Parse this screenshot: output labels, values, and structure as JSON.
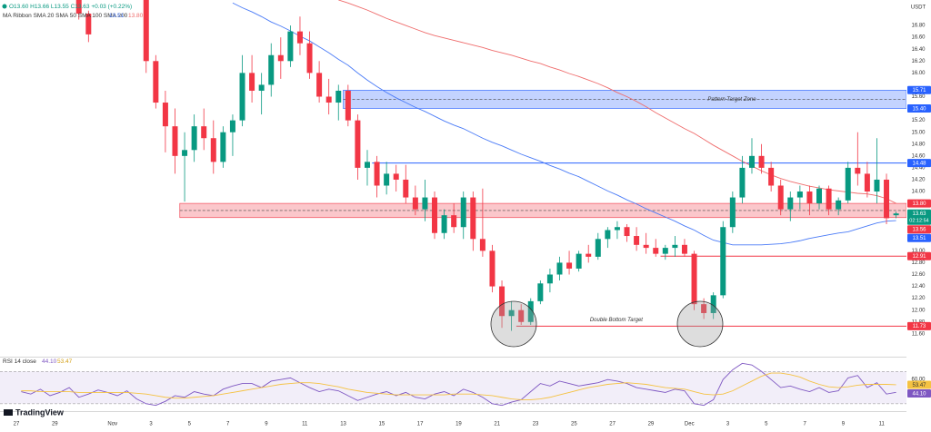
{
  "chart_data": [
    {
      "type": "candlestick",
      "ohlc_legend": "O13.60 H13.66 L13.55 C13.63 +0.03 (+0.22%)",
      "indicator": "MA Ribbon SMA 20 SMA 50 SMA 100 SMA 200",
      "currency": "USDT",
      "up_color": "#089981",
      "down_color": "#f23645",
      "categories": [
        "27",
        null,
        null,
        null,
        "29",
        null,
        null,
        null,
        null,
        null,
        "Nov",
        null,
        null,
        null,
        "3",
        null,
        null,
        null,
        "5",
        null,
        null,
        null,
        "7",
        null,
        null,
        null,
        "9",
        null,
        null,
        null,
        "11",
        null,
        null,
        null,
        "13",
        null,
        null,
        null,
        "15",
        null,
        null,
        null,
        "17",
        null,
        null,
        null,
        "19",
        null,
        null,
        null,
        "21",
        null,
        null,
        null,
        "23",
        null,
        null,
        null,
        "25",
        null,
        null,
        null,
        "27",
        null,
        null,
        null,
        "29",
        null,
        null,
        null,
        "Dec",
        null,
        null,
        null,
        "3",
        null,
        null,
        null,
        "5",
        null,
        null,
        null,
        "7",
        null,
        null,
        null,
        "9",
        null,
        null,
        null,
        "11",
        null
      ],
      "open": [
        null,
        null,
        null,
        null,
        null,
        null,
        17.3,
        17.0,
        17.4,
        17.6,
        17.5,
        17.6,
        17.7,
        17.4,
        16.2,
        15.5,
        15.1,
        14.6,
        14.7,
        15.1,
        14.9,
        14.5,
        15.0,
        15.2,
        16.0,
        15.7,
        15.8,
        16.3,
        16.2,
        16.7,
        16.5,
        16.0,
        15.6,
        15.5,
        15.7,
        15.2,
        14.4,
        14.5,
        14.1,
        14.3,
        14.2,
        13.9,
        13.7,
        13.9,
        13.3,
        13.6,
        13.4,
        13.9,
        13.2,
        13.0,
        12.4,
        11.9,
        12.0,
        11.8,
        12.15,
        12.45,
        12.6,
        12.8,
        12.7,
        12.95,
        12.9,
        13.2,
        13.35,
        13.4,
        13.25,
        13.1,
        13.05,
        12.95,
        13.05,
        13.1,
        12.95,
        12.1,
        11.95,
        12.25,
        13.4,
        13.9,
        14.4,
        14.6,
        14.4,
        14.1,
        13.7,
        13.9,
        14.0,
        13.8,
        14.05,
        13.7,
        13.85,
        14.4,
        14.3,
        14.0,
        14.2,
        13.6
      ],
      "high": [
        null,
        null,
        null,
        null,
        null,
        null,
        17.4,
        17.05,
        17.7,
        17.8,
        17.7,
        17.8,
        17.8,
        17.5,
        16.3,
        15.7,
        15.4,
        15.0,
        15.3,
        15.4,
        15.2,
        15.1,
        15.3,
        16.3,
        16.3,
        16.0,
        16.5,
        16.6,
        16.8,
        16.95,
        16.7,
        16.2,
        15.9,
        15.8,
        15.8,
        15.3,
        14.7,
        14.6,
        14.5,
        14.45,
        14.45,
        14.1,
        14.2,
        14.0,
        13.7,
        13.8,
        14.0,
        14.0,
        14.05,
        13.1,
        12.5,
        12.15,
        12.1,
        12.2,
        12.5,
        12.7,
        12.9,
        13.0,
        13.0,
        13.1,
        13.3,
        13.4,
        13.5,
        13.45,
        13.4,
        13.3,
        13.2,
        13.1,
        13.25,
        13.2,
        13.0,
        12.2,
        12.3,
        13.5,
        14.0,
        14.6,
        14.9,
        14.8,
        14.5,
        14.2,
        14.0,
        14.1,
        14.1,
        14.1,
        14.1,
        13.9,
        14.5,
        15.0,
        14.5,
        14.9,
        14.3,
        13.66
      ],
      "low": [
        null,
        null,
        null,
        null,
        null,
        null,
        16.9,
        16.52,
        17.3,
        17.4,
        17.3,
        17.4,
        17.3,
        16.0,
        15.4,
        14.66,
        14.3,
        13.83,
        14.5,
        14.7,
        14.3,
        14.4,
        14.6,
        15.1,
        15.5,
        15.3,
        15.6,
        15.9,
        16.1,
        16.3,
        15.9,
        15.5,
        15.3,
        15.2,
        15.1,
        14.2,
        14.1,
        13.9,
        13.95,
        14.0,
        13.8,
        13.6,
        13.5,
        13.2,
        13.2,
        13.3,
        13.2,
        13.0,
        12.9,
        12.3,
        11.7,
        11.65,
        11.75,
        11.75,
        12.1,
        12.3,
        12.5,
        12.6,
        12.65,
        12.8,
        12.85,
        13.05,
        13.2,
        13.15,
        13.0,
        12.95,
        12.9,
        12.85,
        12.9,
        12.9,
        12.0,
        11.85,
        11.85,
        12.2,
        13.3,
        13.8,
        14.3,
        14.3,
        14.0,
        13.6,
        13.5,
        13.7,
        13.6,
        13.7,
        13.6,
        13.6,
        13.8,
        14.1,
        13.9,
        13.8,
        13.45,
        13.55
      ],
      "close": [
        null,
        null,
        null,
        null,
        null,
        null,
        17.0,
        16.65,
        17.6,
        17.5,
        17.6,
        17.7,
        17.4,
        16.2,
        15.5,
        15.1,
        14.6,
        14.7,
        15.1,
        14.9,
        14.5,
        15.0,
        15.2,
        16.0,
        15.7,
        15.8,
        16.3,
        16.2,
        16.7,
        16.5,
        16.0,
        15.6,
        15.5,
        15.7,
        15.2,
        14.4,
        14.5,
        14.1,
        14.3,
        14.2,
        13.9,
        13.7,
        13.9,
        13.3,
        13.6,
        13.4,
        13.9,
        13.2,
        13.0,
        12.4,
        11.9,
        12.0,
        11.8,
        12.15,
        12.45,
        12.6,
        12.8,
        12.7,
        12.95,
        12.9,
        13.2,
        13.35,
        13.4,
        13.25,
        13.1,
        13.05,
        12.95,
        13.05,
        13.1,
        12.95,
        12.1,
        11.95,
        12.25,
        13.4,
        13.9,
        14.4,
        14.6,
        14.4,
        14.1,
        13.7,
        13.9,
        14.0,
        13.8,
        14.05,
        13.7,
        13.85,
        14.4,
        14.3,
        14.0,
        14.2,
        13.55,
        13.63
      ],
      "series": [
        {
          "color": "#4a7bf7",
          "last_label": "13.51",
          "values": [
            null,
            null,
            null,
            null,
            null,
            null,
            null,
            null,
            null,
            null,
            null,
            null,
            null,
            null,
            null,
            null,
            null,
            null,
            null,
            null,
            null,
            null,
            17.18,
            17.1,
            17.03,
            16.95,
            16.86,
            16.79,
            16.71,
            16.62,
            16.54,
            16.44,
            16.34,
            16.23,
            16.13,
            16.0,
            15.88,
            15.77,
            15.67,
            15.58,
            15.5,
            15.42,
            15.35,
            15.27,
            15.19,
            15.12,
            15.06,
            14.98,
            14.9,
            14.83,
            14.77,
            14.7,
            14.63,
            14.57,
            14.51,
            14.44,
            14.38,
            14.31,
            14.25,
            14.17,
            14.09,
            14.01,
            13.94,
            13.86,
            13.79,
            13.71,
            13.64,
            13.57,
            13.5,
            13.42,
            13.35,
            13.26,
            13.18,
            13.14,
            13.1,
            13.1,
            13.1,
            13.1,
            13.11,
            13.12,
            13.14,
            13.17,
            13.21,
            13.24,
            13.27,
            13.3,
            13.32,
            13.37,
            13.42,
            13.47,
            13.5,
            13.51
          ]
        },
        {
          "color": "#ef6c6c",
          "last_label": "13.80",
          "values": [
            null,
            null,
            null,
            null,
            null,
            null,
            null,
            null,
            null,
            null,
            null,
            null,
            null,
            null,
            null,
            null,
            null,
            null,
            null,
            null,
            null,
            null,
            null,
            null,
            null,
            null,
            null,
            null,
            null,
            null,
            null,
            null,
            null,
            17.23,
            17.18,
            17.12,
            17.06,
            16.99,
            16.92,
            16.86,
            16.8,
            16.74,
            16.68,
            16.63,
            16.59,
            16.55,
            16.51,
            16.47,
            16.43,
            16.38,
            16.34,
            16.3,
            16.25,
            16.2,
            16.16,
            16.1,
            16.05,
            15.99,
            15.94,
            15.88,
            15.82,
            15.75,
            15.67,
            15.6,
            15.52,
            15.43,
            15.33,
            15.24,
            15.15,
            15.06,
            14.98,
            14.88,
            14.78,
            14.69,
            14.6,
            14.51,
            14.43,
            14.35,
            14.28,
            14.22,
            14.17,
            14.13,
            14.09,
            14.06,
            14.03,
            14.01,
            13.99,
            13.97,
            13.96,
            13.93,
            13.88,
            13.8
          ]
        }
      ],
      "ylim": [
        11.23,
        17.23
      ],
      "yticks": [
        {
          "value": 16.8,
          "label": "16.80"
        },
        {
          "value": 16.6,
          "label": "16.60"
        },
        {
          "value": 16.4,
          "label": "16.40"
        },
        {
          "value": 16.2,
          "label": "16.20"
        },
        {
          "value": 16,
          "label": "16.00"
        },
        {
          "value": 15.6,
          "label": "15.60"
        },
        {
          "value": 15.2,
          "label": "15.20"
        },
        {
          "value": 15,
          "label": "15.00"
        },
        {
          "value": 14.8,
          "label": "14.80"
        },
        {
          "value": 14.6,
          "label": "14.60"
        },
        {
          "value": 14.4,
          "label": "14.40"
        },
        {
          "value": 14.2,
          "label": "14.20"
        },
        {
          "value": 14,
          "label": "14.00"
        },
        {
          "value": 13.2,
          "label": "13.20"
        },
        {
          "value": 13,
          "label": "13.00"
        },
        {
          "value": 12.8,
          "label": "12.80"
        },
        {
          "value": 12.6,
          "label": "12.60"
        },
        {
          "value": 12.4,
          "label": "12.40"
        },
        {
          "value": 12.2,
          "label": "12.20"
        },
        {
          "value": 12,
          "label": "12.00"
        },
        {
          "value": 11.8,
          "label": "11.80"
        },
        {
          "value": 11.6,
          "label": "11.60"
        }
      ],
      "grid": false,
      "zones": [
        {
          "label": "Pattern Target Zone",
          "range": [
            15.4,
            15.71
          ],
          "start": 34,
          "color": "#2962ff"
        },
        {
          "range": [
            13.56,
            13.8
          ],
          "start": 17,
          "color": "#f23645"
        }
      ],
      "lines": [
        {
          "value": 14.48,
          "start": 37,
          "color": "#2962ff"
        },
        {
          "value": 12.91,
          "start": 67,
          "color": "#f23645"
        },
        {
          "value": 11.73,
          "start": 52,
          "color": "#f23645",
          "label": "Double Bottom Target"
        }
      ],
      "price_tags": [
        {
          "value": 15.71,
          "label": "15.71",
          "color": "#2962ff"
        },
        {
          "value": 15.4,
          "label": "15.40",
          "color": "#2962ff"
        },
        {
          "value": 14.48,
          "label": "14.48",
          "color": "#2962ff"
        },
        {
          "value": 13.8,
          "label": "13.80",
          "color": "#f23645"
        },
        {
          "value": 13.63,
          "label": "13.63",
          "color": "#089981",
          "countdown": "02:12:54"
        },
        {
          "value": 13.56,
          "label": "13.56",
          "color": "#f23645"
        },
        {
          "value": 13.51,
          "label": "13.51",
          "color": "#2962ff"
        },
        {
          "value": 12.91,
          "label": "12.91",
          "color": "#f23645"
        },
        {
          "value": 11.73,
          "label": "11.73",
          "color": "#f23645"
        }
      ]
    },
    {
      "type": "line",
      "title": "RSI 14 close",
      "series": [
        {
          "color": "#7e57c2",
          "last_label": "44.10",
          "values": [
            45,
            42,
            48,
            40,
            44,
            50,
            38,
            42,
            47,
            44,
            40,
            46,
            36,
            30,
            28,
            33,
            40,
            38,
            45,
            42,
            40,
            48,
            52,
            55,
            55,
            50,
            58,
            60,
            62,
            56,
            50,
            45,
            48,
            46,
            40,
            34,
            38,
            42,
            45,
            40,
            44,
            38,
            36,
            42,
            45,
            40,
            48,
            44,
            38,
            30,
            28,
            32,
            35,
            45,
            55,
            52,
            58,
            55,
            52,
            54,
            56,
            60,
            58,
            55,
            50,
            48,
            46,
            44,
            48,
            46,
            30,
            28,
            35,
            60,
            72,
            80,
            78,
            70,
            60,
            50,
            52,
            48,
            45,
            50,
            44,
            46,
            62,
            65,
            50,
            56,
            42,
            44.1
          ]
        },
        {
          "color": "#f5c242",
          "last_label": "53.47",
          "values": [
            46,
            46,
            45,
            45,
            45,
            45,
            44,
            44,
            44,
            44,
            44,
            44,
            43,
            42,
            40,
            38,
            37,
            37,
            38,
            39,
            40,
            42,
            44,
            46,
            48,
            50,
            52,
            54,
            55,
            56,
            56,
            55,
            53,
            51,
            48,
            46,
            44,
            43,
            42,
            41,
            41,
            41,
            41,
            41,
            41,
            42,
            42,
            42,
            41,
            40,
            38,
            36,
            35,
            35,
            36,
            38,
            41,
            44,
            47,
            50,
            52,
            54,
            55,
            56,
            55,
            54,
            52,
            50,
            49,
            48,
            45,
            42,
            41,
            42,
            46,
            52,
            58,
            64,
            68,
            68,
            66,
            63,
            58,
            54,
            51,
            50,
            51,
            53,
            54,
            54,
            54,
            53.47
          ]
        }
      ],
      "ylim": [
        22,
        86
      ],
      "yticks": [
        {
          "value": 60,
          "label": "60.00"
        }
      ],
      "bands": [
        30,
        70
      ],
      "band_color": "#7e57c2"
    }
  ],
  "brand": "TradingView"
}
